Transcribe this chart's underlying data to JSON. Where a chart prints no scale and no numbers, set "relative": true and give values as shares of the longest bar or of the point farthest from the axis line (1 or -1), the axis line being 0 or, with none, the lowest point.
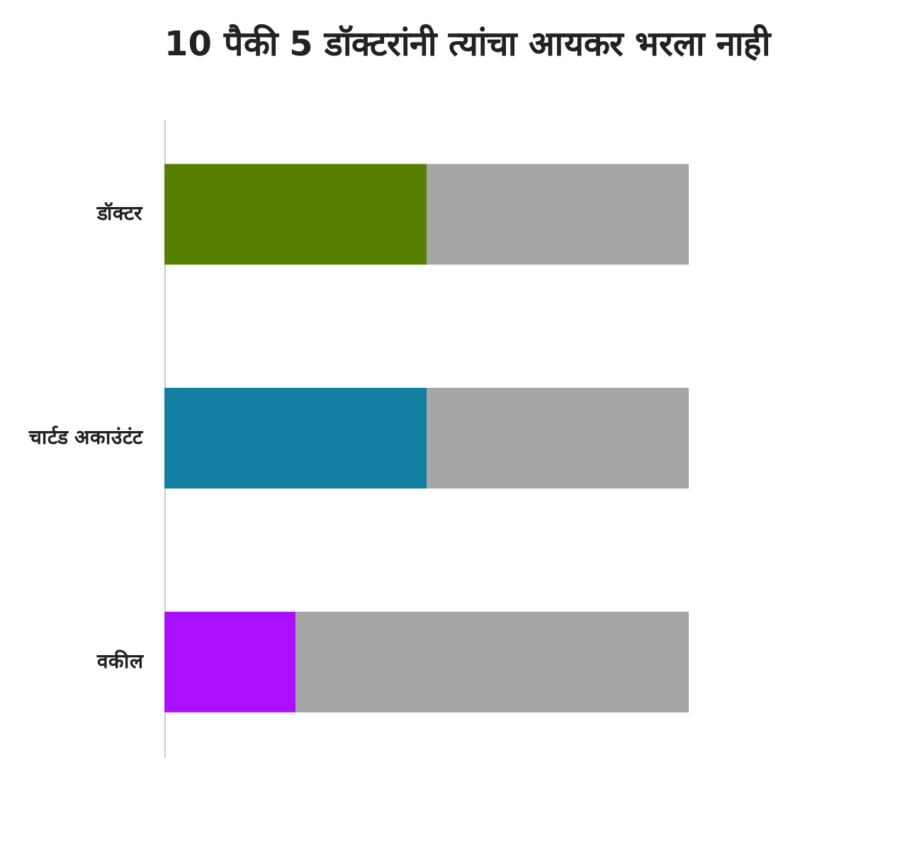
{
  "chart_data": {
    "type": "bar",
    "orientation": "horizontal",
    "stacked": true,
    "relative": true,
    "title": "10 पैकी 5 डॉक्टरांनी त्यांचा आयकर भरला नाही",
    "categories": [
      "डॉक्टर",
      "चार्टड अकाउंटंट",
      "वकील"
    ],
    "series": [
      {
        "colors": [
          "#588000",
          "#1380a1",
          "#aa10ff"
        ],
        "values": [
          0.5,
          0.5,
          0.25
        ]
      },
      {
        "color": "#a6a6a6",
        "values": [
          0.5,
          0.5,
          0.75
        ]
      }
    ]
  }
}
